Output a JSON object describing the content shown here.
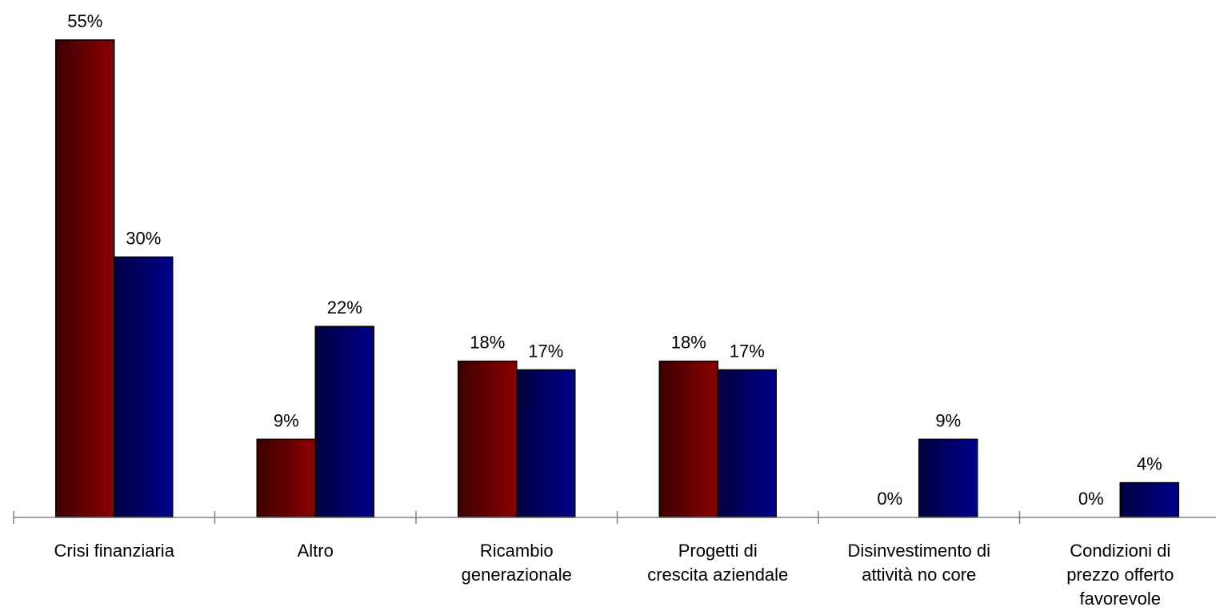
{
  "chart_data": {
    "type": "bar",
    "categories": [
      [
        "Crisi finanziaria"
      ],
      [
        "Altro"
      ],
      [
        "Ricambio",
        "generazionale"
      ],
      [
        "Progetti di",
        "crescita aziendale"
      ],
      [
        "Disinvestimento di",
        "attività no core"
      ],
      [
        "Condizioni di",
        "prezzo offerto",
        "favorevole"
      ]
    ],
    "series": [
      {
        "values": [
          55,
          9,
          18,
          18,
          0,
          0
        ],
        "labels": [
          "55%",
          "9%",
          "18%",
          "18%",
          "0%",
          "0%"
        ]
      },
      {
        "values": [
          30,
          22,
          17,
          17,
          9,
          4
        ],
        "labels": [
          "30%",
          "22%",
          "17%",
          "17%",
          "9%",
          "4%"
        ]
      }
    ],
    "ylim": [
      0,
      60
    ],
    "grid": false,
    "colors": {
      "series1_dark": "#3d0000",
      "series1_light": "#8a0000",
      "series2_dark": "#000040",
      "series2_light": "#00008c",
      "axis": "#808080"
    }
  }
}
